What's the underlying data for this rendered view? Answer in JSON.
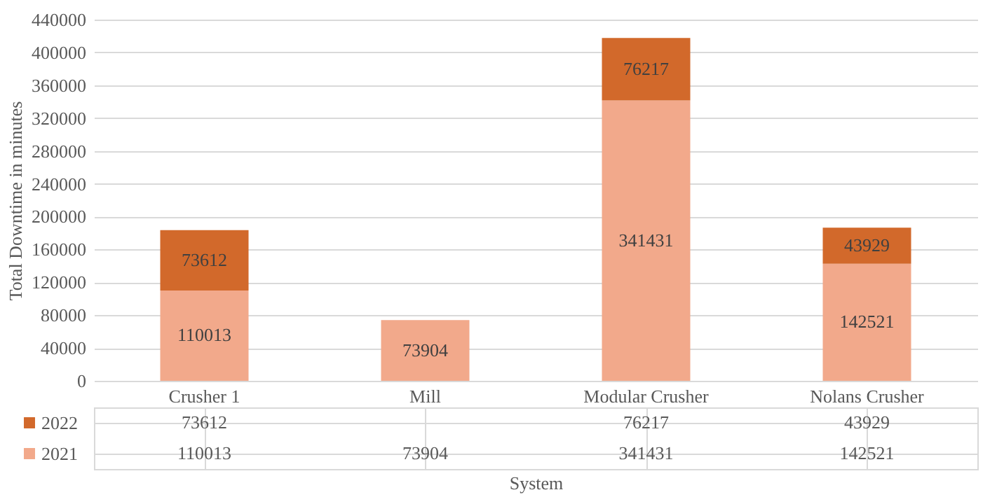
{
  "chart_data": {
    "type": "bar",
    "stacked": true,
    "xlabel": "System",
    "ylabel": "Total Downtime  in minutes",
    "categories": [
      "Crusher 1",
      "Mill",
      "Modular Crusher",
      "Nolans Crusher"
    ],
    "series": [
      {
        "name": "2021",
        "color": "#f2a98b",
        "values": [
          110013,
          73904,
          341431,
          142521
        ],
        "value_labels": [
          "110013",
          "73904",
          "341431",
          "142521"
        ]
      },
      {
        "name": "2022",
        "color": "#d2692b",
        "values": [
          73612,
          null,
          76217,
          43929
        ],
        "value_labels": [
          "73612",
          null,
          "76217",
          "43929"
        ]
      }
    ],
    "ylim": [
      0,
      440000
    ],
    "yticks": [
      0,
      40000,
      80000,
      120000,
      160000,
      200000,
      240000,
      280000,
      320000,
      360000,
      400000,
      440000
    ],
    "grid": "y",
    "data_labels": true,
    "legend": "bottom"
  }
}
